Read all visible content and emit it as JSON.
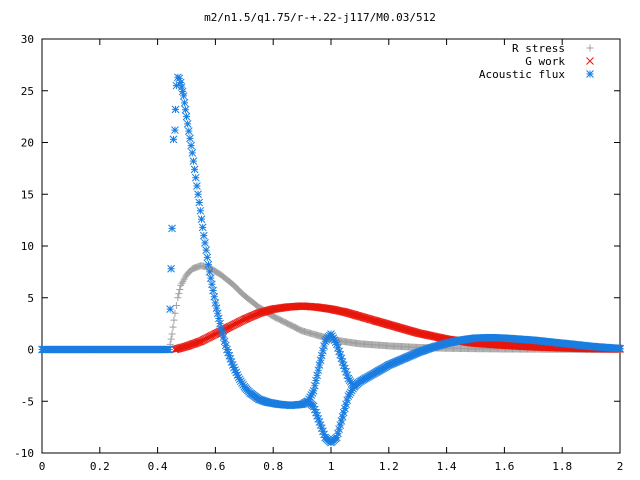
{
  "chart_data": {
    "type": "scatter",
    "title": "m2/n1.5/q1.75/r-+.22-j117/M0.03/512",
    "xlim": [
      0,
      2
    ],
    "ylim": [
      -10,
      30
    ],
    "xticks": [
      "0",
      "0.2",
      "0.4",
      "0.6",
      "0.8",
      "1",
      "1.2",
      "1.4",
      "1.6",
      "1.8",
      "2"
    ],
    "yticks": [
      "-10",
      "-5",
      "0",
      "5",
      "10",
      "15",
      "20",
      "25",
      "30"
    ],
    "legend_position": "top-right",
    "grid": false,
    "series": [
      {
        "name": "R stress",
        "marker": "plus",
        "color": "#a0a0a0",
        "points": [
          [
            0,
            0
          ],
          [
            0.44,
            0
          ],
          [
            0.45,
            1.5
          ],
          [
            0.46,
            3.5
          ],
          [
            0.47,
            5.0
          ],
          [
            0.48,
            6.2
          ],
          [
            0.5,
            7.2
          ],
          [
            0.52,
            7.8
          ],
          [
            0.55,
            8.1
          ],
          [
            0.58,
            7.9
          ],
          [
            0.62,
            7.2
          ],
          [
            0.66,
            6.3
          ],
          [
            0.7,
            5.2
          ],
          [
            0.75,
            4.1
          ],
          [
            0.8,
            3.2
          ],
          [
            0.85,
            2.5
          ],
          [
            0.9,
            1.8
          ],
          [
            0.95,
            1.4
          ],
          [
            1.0,
            1.0
          ],
          [
            1.05,
            0.75
          ],
          [
            1.1,
            0.55
          ],
          [
            1.2,
            0.35
          ],
          [
            1.3,
            0.2
          ],
          [
            1.4,
            0.12
          ],
          [
            1.5,
            0.08
          ],
          [
            1.6,
            0.05
          ],
          [
            1.8,
            0.02
          ],
          [
            2.0,
            0.01
          ]
        ]
      },
      {
        "name": "G work",
        "marker": "cross",
        "color": "#e8160c",
        "points": [
          [
            0.46,
            0
          ],
          [
            0.5,
            0.3
          ],
          [
            0.55,
            0.8
          ],
          [
            0.6,
            1.5
          ],
          [
            0.65,
            2.2
          ],
          [
            0.7,
            2.9
          ],
          [
            0.75,
            3.5
          ],
          [
            0.8,
            3.9
          ],
          [
            0.85,
            4.1
          ],
          [
            0.9,
            4.2
          ],
          [
            0.95,
            4.1
          ],
          [
            1.0,
            3.9
          ],
          [
            1.05,
            3.6
          ],
          [
            1.1,
            3.2
          ],
          [
            1.15,
            2.8
          ],
          [
            1.2,
            2.4
          ],
          [
            1.25,
            2.0
          ],
          [
            1.3,
            1.6
          ],
          [
            1.35,
            1.3
          ],
          [
            1.4,
            1.0
          ],
          [
            1.45,
            0.8
          ],
          [
            1.5,
            0.6
          ],
          [
            1.6,
            0.4
          ],
          [
            1.7,
            0.25
          ],
          [
            1.8,
            0.15
          ],
          [
            1.9,
            0.08
          ],
          [
            2.0,
            0.05
          ]
        ]
      },
      {
        "name": "Acoustic flux",
        "marker": "star",
        "color": "#1a7de0",
        "points": [
          [
            0,
            0
          ],
          [
            0.44,
            0
          ],
          [
            0.45,
            11.7
          ],
          [
            0.455,
            20.3
          ],
          [
            0.46,
            21.2
          ],
          [
            0.462,
            23.2
          ],
          [
            0.465,
            25.5
          ],
          [
            0.47,
            26.3
          ],
          [
            0.475,
            26.2
          ],
          [
            0.48,
            25.8
          ],
          [
            0.49,
            24.5
          ],
          [
            0.5,
            22.5
          ],
          [
            0.52,
            19.0
          ],
          [
            0.54,
            15.0
          ],
          [
            0.56,
            11.0
          ],
          [
            0.58,
            7.5
          ],
          [
            0.6,
            4.5
          ],
          [
            0.62,
            2.0
          ],
          [
            0.64,
            0.0
          ],
          [
            0.66,
            -1.5
          ],
          [
            0.68,
            -2.7
          ],
          [
            0.7,
            -3.6
          ],
          [
            0.72,
            -4.2
          ],
          [
            0.75,
            -4.8
          ],
          [
            0.78,
            -5.1
          ],
          [
            0.82,
            -5.3
          ],
          [
            0.86,
            -5.4
          ],
          [
            0.9,
            -5.3
          ],
          [
            0.92,
            -5.0
          ],
          [
            0.94,
            -4.0
          ],
          [
            0.96,
            -1.5
          ],
          [
            0.98,
            0.8
          ],
          [
            1.0,
            1.5
          ],
          [
            1.02,
            0.5
          ],
          [
            1.04,
            -1.2
          ],
          [
            1.06,
            -2.8
          ],
          [
            1.08,
            -3.6
          ],
          [
            1.1,
            -3.1
          ],
          [
            1.15,
            -2.3
          ],
          [
            1.2,
            -1.5
          ],
          [
            1.25,
            -0.9
          ],
          [
            1.3,
            -0.3
          ],
          [
            1.35,
            0.2
          ],
          [
            1.4,
            0.6
          ],
          [
            1.45,
            0.9
          ],
          [
            1.5,
            1.1
          ],
          [
            1.55,
            1.15
          ],
          [
            1.6,
            1.1
          ],
          [
            1.7,
            0.9
          ],
          [
            1.8,
            0.6
          ],
          [
            1.9,
            0.3
          ],
          [
            2.0,
            0.1
          ]
        ],
        "dip_points": [
          [
            0.92,
            -5.0
          ],
          [
            0.94,
            -5.5
          ],
          [
            0.96,
            -7.0
          ],
          [
            0.98,
            -8.5
          ],
          [
            1.0,
            -9.0
          ],
          [
            1.02,
            -8.5
          ],
          [
            1.04,
            -6.5
          ],
          [
            1.06,
            -4.5
          ],
          [
            1.08,
            -3.6
          ]
        ]
      }
    ]
  }
}
